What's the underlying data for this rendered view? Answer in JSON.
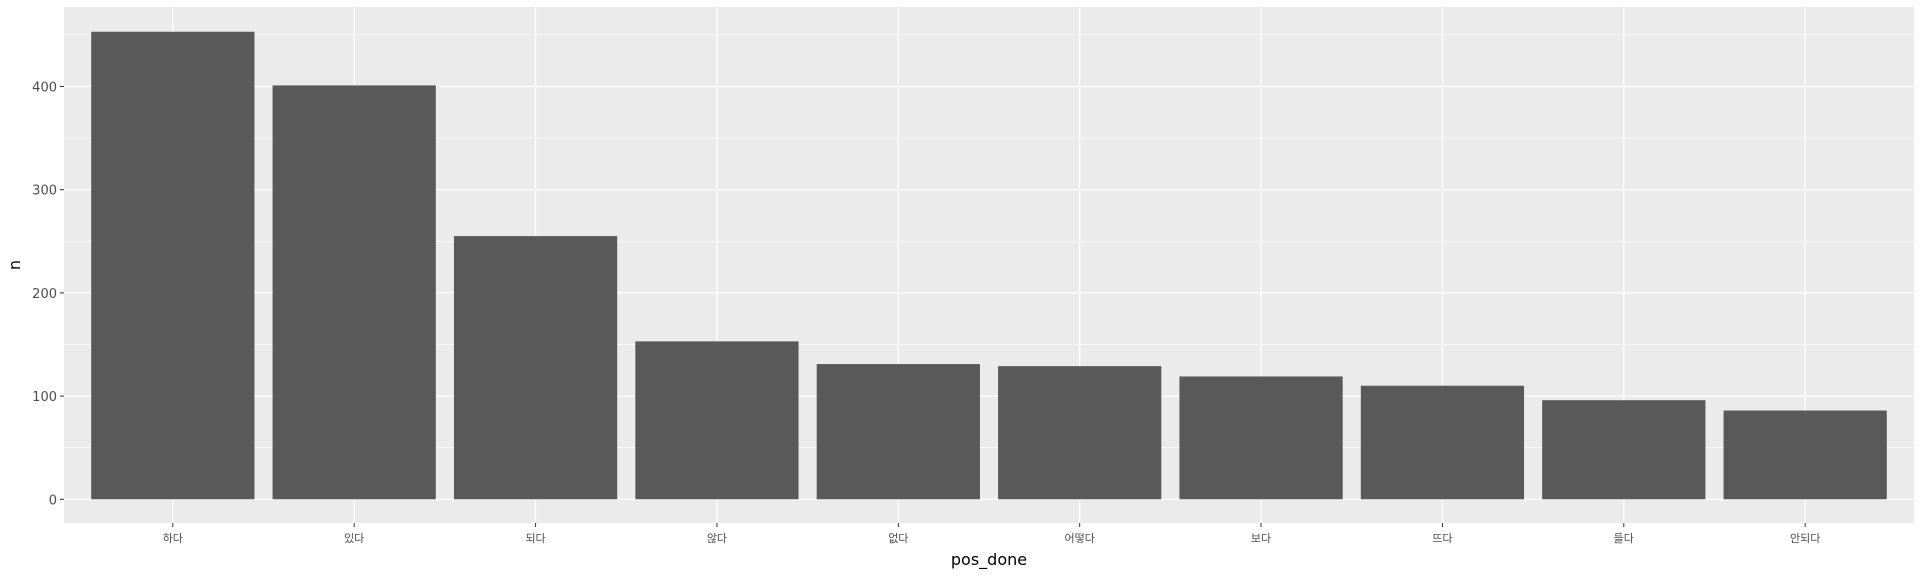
{
  "chart_data": {
    "type": "bar",
    "categories": [
      "하다",
      "있다",
      "되다",
      "않다",
      "없다",
      "어떻다",
      "보다",
      "뜨다",
      "들다",
      "안되다"
    ],
    "values": [
      453,
      401,
      255,
      153,
      131,
      129,
      119,
      110,
      96,
      86
    ],
    "xlabel": "pos_done",
    "ylabel": "n",
    "ylim": [
      -23,
      477
    ],
    "yticks": [
      0,
      100,
      200,
      300,
      400
    ],
    "grid": true,
    "legend": "none",
    "colors": {
      "bar": "#595959",
      "panel": "#ebebeb",
      "grid": "#ffffff",
      "tick_text": "#4d4d4d"
    }
  }
}
